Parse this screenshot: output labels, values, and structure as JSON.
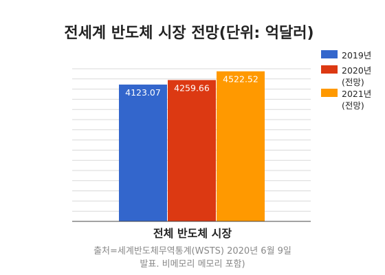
{
  "chart_data": {
    "type": "bar",
    "title": "전세계 반도체 시장 전망(단위: 억달러)",
    "categories": [
      "전체 반도체 시장"
    ],
    "series": [
      {
        "name": "2019년",
        "values": [
          4123.07
        ],
        "color": "#3366cc"
      },
      {
        "name": "2020년\n(전망)",
        "values": [
          4259.66
        ],
        "color": "#dc3912"
      },
      {
        "name": "2021년\n(전망)",
        "values": [
          4522.52
        ],
        "color": "#ff9900"
      }
    ],
    "data_labels": [
      "4123.07",
      "4259.66",
      "4522.52"
    ],
    "xlabel": "전체 반도체 시장",
    "ylabel": "",
    "ylim": [
      0,
      4600
    ],
    "grid": true,
    "legend": "right",
    "source_line1": "출처=세계반도체무역통계(WSTS) 2020년 6월 9일",
    "source_line2": "발표. 비메모리 메모리 포함)"
  }
}
